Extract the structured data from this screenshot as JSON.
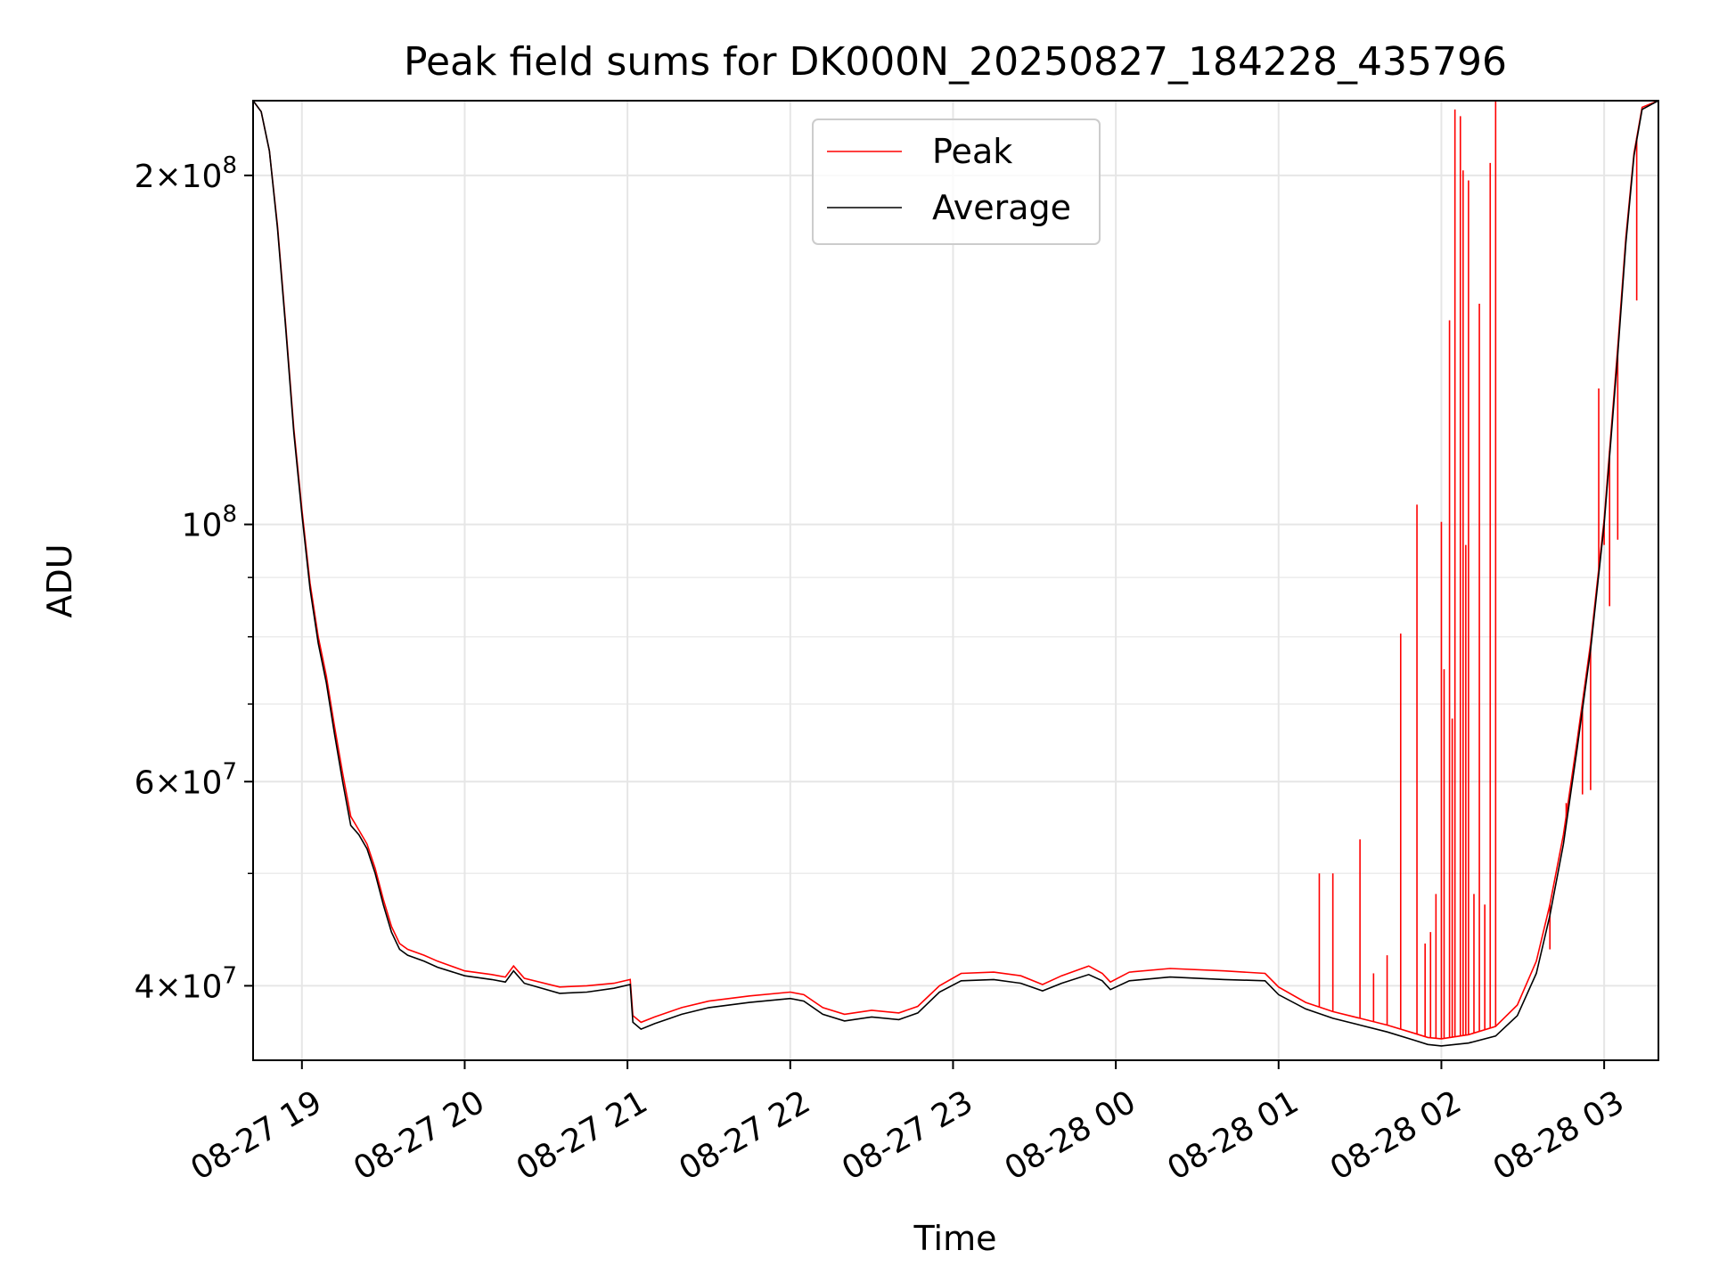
{
  "chart_data": {
    "type": "line",
    "title": "Peak field sums for DK000N_20250827_184228_435796",
    "xlabel": "Time",
    "ylabel": "ADU",
    "yscale": "log",
    "xlim": [
      "2025-08-27 18:42",
      "2025-08-28 03:20"
    ],
    "ylim": [
      34500000,
      232000000
    ],
    "grid": true,
    "legend_position": "top-center",
    "x_ticks": [
      {
        "value": "2025-08-27 19:00",
        "label": "08-27 19"
      },
      {
        "value": "2025-08-27 20:00",
        "label": "08-27 20"
      },
      {
        "value": "2025-08-27 21:00",
        "label": "08-27 21"
      },
      {
        "value": "2025-08-27 22:00",
        "label": "08-27 22"
      },
      {
        "value": "2025-08-27 23:00",
        "label": "08-27 23"
      },
      {
        "value": "2025-08-28 00:00",
        "label": "08-28 00"
      },
      {
        "value": "2025-08-28 01:00",
        "label": "08-28 01"
      },
      {
        "value": "2025-08-28 02:00",
        "label": "08-28 02"
      },
      {
        "value": "2025-08-28 03:00",
        "label": "08-28 03"
      }
    ],
    "y_ticks": [
      {
        "value": 40000000,
        "mant": "4",
        "exp": "7"
      },
      {
        "value": 60000000,
        "mant": "6",
        "exp": "7"
      },
      {
        "value": 100000000,
        "mant": "",
        "exp": "8"
      },
      {
        "value": 200000000,
        "mant": "2",
        "exp": "8"
      }
    ],
    "y_minor_ticks": [
      50000000,
      70000000,
      80000000,
      90000000
    ],
    "series": [
      {
        "name": "Average",
        "color": "#000000",
        "points": [
          [
            "2025-08-27 18:42",
            232000000
          ],
          [
            "2025-08-27 18:45",
            227000000
          ],
          [
            "2025-08-27 18:48",
            210000000
          ],
          [
            "2025-08-27 18:51",
            180000000
          ],
          [
            "2025-08-27 18:54",
            148000000
          ],
          [
            "2025-08-27 18:57",
            120000000
          ],
          [
            "2025-08-27 19:00",
            102000000
          ],
          [
            "2025-08-27 19:03",
            88000000
          ],
          [
            "2025-08-27 19:06",
            79000000
          ],
          [
            "2025-08-27 19:09",
            73000000
          ],
          [
            "2025-08-27 19:12",
            66000000
          ],
          [
            "2025-08-27 19:15",
            60000000
          ],
          [
            "2025-08-27 19:18",
            55000000
          ],
          [
            "2025-08-27 19:21",
            54000000
          ],
          [
            "2025-08-27 19:24",
            52500000
          ],
          [
            "2025-08-27 19:27",
            50000000
          ],
          [
            "2025-08-27 19:30",
            47000000
          ],
          [
            "2025-08-27 19:33",
            44500000
          ],
          [
            "2025-08-27 19:36",
            43000000
          ],
          [
            "2025-08-27 19:39",
            42500000
          ],
          [
            "2025-08-27 19:45",
            42000000
          ],
          [
            "2025-08-27 19:50",
            41500000
          ],
          [
            "2025-08-27 20:00",
            40800000
          ],
          [
            "2025-08-27 20:10",
            40500000
          ],
          [
            "2025-08-27 20:15",
            40300000
          ],
          [
            "2025-08-27 20:18",
            41200000
          ],
          [
            "2025-08-27 20:22",
            40200000
          ],
          [
            "2025-08-27 20:35",
            39400000
          ],
          [
            "2025-08-27 20:45",
            39500000
          ],
          [
            "2025-08-27 20:55",
            39800000
          ],
          [
            "2025-08-27 21:01",
            40100000
          ],
          [
            "2025-08-27 21:02",
            37200000
          ],
          [
            "2025-08-27 21:05",
            36700000
          ],
          [
            "2025-08-27 21:10",
            37100000
          ],
          [
            "2025-08-27 21:20",
            37800000
          ],
          [
            "2025-08-27 21:30",
            38300000
          ],
          [
            "2025-08-27 21:45",
            38700000
          ],
          [
            "2025-08-27 22:00",
            39000000
          ],
          [
            "2025-08-27 22:05",
            38800000
          ],
          [
            "2025-08-27 22:12",
            37800000
          ],
          [
            "2025-08-27 22:20",
            37300000
          ],
          [
            "2025-08-27 22:30",
            37600000
          ],
          [
            "2025-08-27 22:40",
            37400000
          ],
          [
            "2025-08-27 22:47",
            37900000
          ],
          [
            "2025-08-27 22:55",
            39500000
          ],
          [
            "2025-08-27 23:03",
            40400000
          ],
          [
            "2025-08-27 23:15",
            40500000
          ],
          [
            "2025-08-27 23:25",
            40200000
          ],
          [
            "2025-08-27 23:33",
            39600000
          ],
          [
            "2025-08-27 23:40",
            40200000
          ],
          [
            "2025-08-27 23:50",
            40900000
          ],
          [
            "2025-08-27 23:55",
            40400000
          ],
          [
            "2025-08-27 23:58",
            39700000
          ],
          [
            "2025-08-28 00:05",
            40400000
          ],
          [
            "2025-08-28 00:20",
            40700000
          ],
          [
            "2025-08-28 00:40",
            40500000
          ],
          [
            "2025-08-28 00:55",
            40400000
          ],
          [
            "2025-08-28 01:00",
            39300000
          ],
          [
            "2025-08-28 01:10",
            38200000
          ],
          [
            "2025-08-28 01:20",
            37500000
          ],
          [
            "2025-08-28 01:30",
            37000000
          ],
          [
            "2025-08-28 01:40",
            36500000
          ],
          [
            "2025-08-28 01:50",
            35900000
          ],
          [
            "2025-08-28 01:55",
            35600000
          ],
          [
            "2025-08-28 02:00",
            35500000
          ],
          [
            "2025-08-28 02:10",
            35700000
          ],
          [
            "2025-08-28 02:20",
            36200000
          ],
          [
            "2025-08-28 02:28",
            37700000
          ],
          [
            "2025-08-28 02:35",
            41000000
          ],
          [
            "2025-08-28 02:40",
            46000000
          ],
          [
            "2025-08-28 02:45",
            53000000
          ],
          [
            "2025-08-28 02:50",
            64000000
          ],
          [
            "2025-08-28 02:55",
            78000000
          ],
          [
            "2025-08-28 03:00",
            100000000
          ],
          [
            "2025-08-28 03:05",
            140000000
          ],
          [
            "2025-08-28 03:08",
            175000000
          ],
          [
            "2025-08-28 03:11",
            208000000
          ],
          [
            "2025-08-28 03:14",
            228000000
          ],
          [
            "2025-08-28 03:20",
            232000000
          ]
        ]
      },
      {
        "name": "Peak",
        "color": "#ff0000",
        "points": [
          [
            "2025-08-27 18:42",
            232000000
          ],
          [
            "2025-08-27 18:45",
            227000000
          ],
          [
            "2025-08-27 18:48",
            210000000
          ],
          [
            "2025-08-27 18:51",
            181000000
          ],
          [
            "2025-08-27 18:54",
            149000000
          ],
          [
            "2025-08-27 18:57",
            121000000
          ],
          [
            "2025-08-27 19:00",
            103000000
          ],
          [
            "2025-08-27 19:03",
            89000000
          ],
          [
            "2025-08-27 19:06",
            80000000
          ],
          [
            "2025-08-27 19:09",
            74000000
          ],
          [
            "2025-08-27 19:12",
            67000000
          ],
          [
            "2025-08-27 19:15",
            61000000
          ],
          [
            "2025-08-27 19:18",
            56000000
          ],
          [
            "2025-08-27 19:21",
            54500000
          ],
          [
            "2025-08-27 19:24",
            53000000
          ],
          [
            "2025-08-27 19:27",
            50500000
          ],
          [
            "2025-08-27 19:30",
            47500000
          ],
          [
            "2025-08-27 19:33",
            45000000
          ],
          [
            "2025-08-27 19:36",
            43500000
          ],
          [
            "2025-08-27 19:39",
            43000000
          ],
          [
            "2025-08-27 19:45",
            42500000
          ],
          [
            "2025-08-27 19:50",
            42000000
          ],
          [
            "2025-08-27 20:00",
            41200000
          ],
          [
            "2025-08-27 20:10",
            40900000
          ],
          [
            "2025-08-27 20:15",
            40700000
          ],
          [
            "2025-08-27 20:18",
            41600000
          ],
          [
            "2025-08-27 20:22",
            40600000
          ],
          [
            "2025-08-27 20:35",
            39900000
          ],
          [
            "2025-08-27 20:45",
            40000000
          ],
          [
            "2025-08-27 20:55",
            40200000
          ],
          [
            "2025-08-27 21:01",
            40500000
          ],
          [
            "2025-08-27 21:02",
            37700000
          ],
          [
            "2025-08-27 21:05",
            37200000
          ],
          [
            "2025-08-27 21:10",
            37600000
          ],
          [
            "2025-08-27 21:20",
            38300000
          ],
          [
            "2025-08-27 21:30",
            38800000
          ],
          [
            "2025-08-27 21:45",
            39200000
          ],
          [
            "2025-08-27 22:00",
            39500000
          ],
          [
            "2025-08-27 22:05",
            39300000
          ],
          [
            "2025-08-27 22:12",
            38300000
          ],
          [
            "2025-08-27 22:20",
            37800000
          ],
          [
            "2025-08-27 22:30",
            38100000
          ],
          [
            "2025-08-27 22:40",
            37900000
          ],
          [
            "2025-08-27 22:47",
            38400000
          ],
          [
            "2025-08-27 22:55",
            40000000
          ],
          [
            "2025-08-27 23:03",
            41000000
          ],
          [
            "2025-08-27 23:15",
            41100000
          ],
          [
            "2025-08-27 23:25",
            40800000
          ],
          [
            "2025-08-27 23:33",
            40100000
          ],
          [
            "2025-08-27 23:40",
            40800000
          ],
          [
            "2025-08-27 23:50",
            41600000
          ],
          [
            "2025-08-27 23:55",
            41000000
          ],
          [
            "2025-08-27 23:58",
            40300000
          ],
          [
            "2025-08-28 00:05",
            41100000
          ],
          [
            "2025-08-28 00:20",
            41400000
          ],
          [
            "2025-08-28 00:40",
            41200000
          ],
          [
            "2025-08-28 00:55",
            41000000
          ],
          [
            "2025-08-28 01:00",
            39900000
          ],
          [
            "2025-08-28 01:10",
            38700000
          ],
          [
            "2025-08-28 01:20",
            38000000
          ],
          [
            "2025-08-28 01:30",
            37500000
          ],
          [
            "2025-08-28 01:40",
            37000000
          ],
          [
            "2025-08-28 01:50",
            36400000
          ],
          [
            "2025-08-28 01:55",
            36100000
          ],
          [
            "2025-08-28 02:00",
            36000000
          ],
          [
            "2025-08-28 02:10",
            36300000
          ],
          [
            "2025-08-28 02:20",
            36900000
          ],
          [
            "2025-08-28 02:28",
            38500000
          ],
          [
            "2025-08-28 02:35",
            42000000
          ],
          [
            "2025-08-28 02:40",
            47000000
          ],
          [
            "2025-08-28 02:45",
            54000000
          ],
          [
            "2025-08-28 02:50",
            65000000
          ],
          [
            "2025-08-28 02:55",
            79000000
          ],
          [
            "2025-08-28 03:00",
            101000000
          ],
          [
            "2025-08-28 03:05",
            142000000
          ],
          [
            "2025-08-28 03:08",
            177000000
          ],
          [
            "2025-08-28 03:11",
            209000000
          ],
          [
            "2025-08-28 03:14",
            229000000
          ],
          [
            "2025-08-28 03:20",
            232000000
          ]
        ],
        "spikes": [
          [
            "2025-08-28 01:15",
            50000000
          ],
          [
            "2025-08-28 01:20",
            50000000
          ],
          [
            "2025-08-28 01:30",
            53500000
          ],
          [
            "2025-08-28 01:35",
            41000000
          ],
          [
            "2025-08-28 01:40",
            42500000
          ],
          [
            "2025-08-28 01:45",
            80500000
          ],
          [
            "2025-08-28 01:51",
            104000000
          ],
          [
            "2025-08-28 01:54",
            43500000
          ],
          [
            "2025-08-28 01:56",
            44500000
          ],
          [
            "2025-08-28 01:58",
            48000000
          ],
          [
            "2025-08-28 02:00",
            100500000
          ],
          [
            "2025-08-28 02:01",
            75000000
          ],
          [
            "2025-08-28 02:03",
            150000000
          ],
          [
            "2025-08-28 02:04",
            68000000
          ],
          [
            "2025-08-28 02:05",
            228000000
          ],
          [
            "2025-08-28 02:07",
            225000000
          ],
          [
            "2025-08-28 02:08",
            202000000
          ],
          [
            "2025-08-28 02:09",
            96000000
          ],
          [
            "2025-08-28 02:10",
            198000000
          ],
          [
            "2025-08-28 02:12",
            48000000
          ],
          [
            "2025-08-28 02:14",
            155000000
          ],
          [
            "2025-08-28 02:16",
            47000000
          ],
          [
            "2025-08-28 02:18",
            205000000
          ],
          [
            "2025-08-28 02:20",
            232000000
          ],
          [
            "2025-08-28 02:40",
            43000000
          ],
          [
            "2025-08-28 02:46",
            57500000
          ],
          [
            "2025-08-28 02:52",
            58500000
          ],
          [
            "2025-08-28 02:55",
            59000000
          ],
          [
            "2025-08-28 02:58",
            131000000
          ],
          [
            "2025-08-28 03:00",
            96000000
          ],
          [
            "2025-08-28 03:02",
            85000000
          ],
          [
            "2025-08-28 03:05",
            97000000
          ],
          [
            "2025-08-28 03:12",
            156000000
          ]
        ]
      }
    ]
  }
}
